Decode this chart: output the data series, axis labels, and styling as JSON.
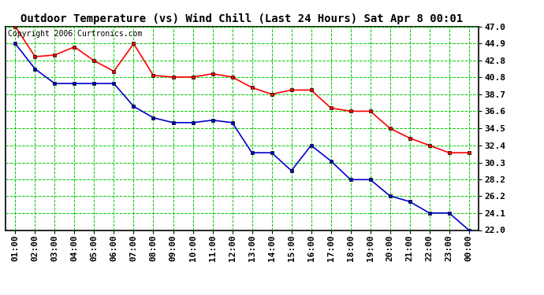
{
  "title": "Outdoor Temperature (vs) Wind Chill (Last 24 Hours) Sat Apr 8 00:01",
  "copyright_text": "Copyright 2006 Curtronics.com",
  "x_labels": [
    "01:00",
    "02:00",
    "03:00",
    "04:00",
    "05:00",
    "06:00",
    "07:00",
    "08:00",
    "09:00",
    "10:00",
    "11:00",
    "12:00",
    "13:00",
    "14:00",
    "15:00",
    "16:00",
    "17:00",
    "18:00",
    "19:00",
    "20:00",
    "21:00",
    "22:00",
    "23:00",
    "00:00"
  ],
  "temp_red": [
    47.0,
    43.3,
    43.5,
    44.5,
    42.8,
    41.5,
    44.9,
    41.0,
    40.8,
    40.8,
    41.2,
    40.8,
    39.5,
    38.7,
    39.2,
    39.2,
    37.0,
    36.6,
    36.6,
    34.5,
    33.3,
    32.4,
    31.5,
    31.5
  ],
  "temp_blue": [
    44.9,
    41.8,
    40.0,
    40.0,
    40.0,
    40.0,
    37.2,
    35.8,
    35.2,
    35.2,
    35.5,
    35.2,
    31.5,
    31.5,
    29.3,
    32.4,
    30.5,
    28.2,
    28.2,
    26.2,
    25.5,
    24.1,
    24.1,
    22.0
  ],
  "ylim_min": 22.0,
  "ylim_max": 47.0,
  "yticks": [
    22.0,
    24.1,
    26.2,
    28.2,
    30.3,
    32.4,
    34.5,
    36.6,
    38.7,
    40.8,
    42.8,
    44.9,
    47.0
  ],
  "red_color": "#ff0000",
  "blue_color": "#0000cc",
  "grid_color": "#00cc00",
  "bg_color": "#ffffff",
  "title_fontsize": 10,
  "copyright_fontsize": 7,
  "tick_fontsize": 8
}
